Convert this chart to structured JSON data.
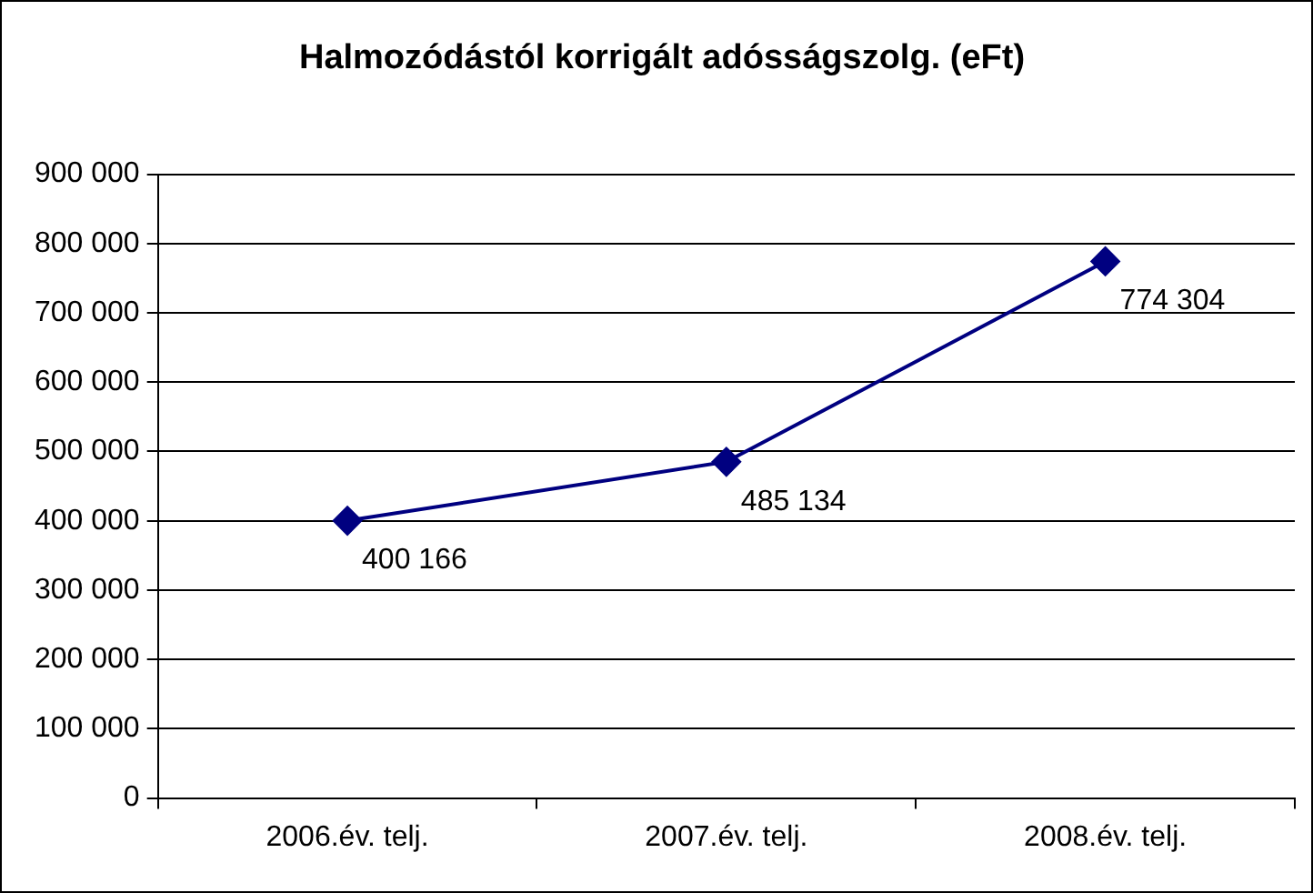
{
  "chart_data": {
    "type": "line",
    "title": "Halmozódástól korrigált adósságszolg. (eFt)",
    "categories": [
      "2006.év. telj.",
      "2007.év. telj.",
      "2008.év. telj."
    ],
    "series": [
      {
        "color": "#000080",
        "values": [
          400166,
          485134,
          774304
        ],
        "value_labels": [
          "400 166",
          "485 134",
          "774 304"
        ]
      }
    ],
    "ylim": [
      0,
      900000
    ],
    "yticks": [
      {
        "value": 0,
        "label": "0"
      },
      {
        "value": 100000,
        "label": "100 000"
      },
      {
        "value": 200000,
        "label": "200 000"
      },
      {
        "value": 300000,
        "label": "300 000"
      },
      {
        "value": 400000,
        "label": "400 000"
      },
      {
        "value": 500000,
        "label": "500 000"
      },
      {
        "value": 600000,
        "label": "600 000"
      },
      {
        "value": 700000,
        "label": "700 000"
      },
      {
        "value": 800000,
        "label": "800 000"
      },
      {
        "value": 900000,
        "label": "900 000"
      }
    ],
    "grid": "y",
    "legend": false,
    "marker": "diamond",
    "line_style": "solid"
  }
}
